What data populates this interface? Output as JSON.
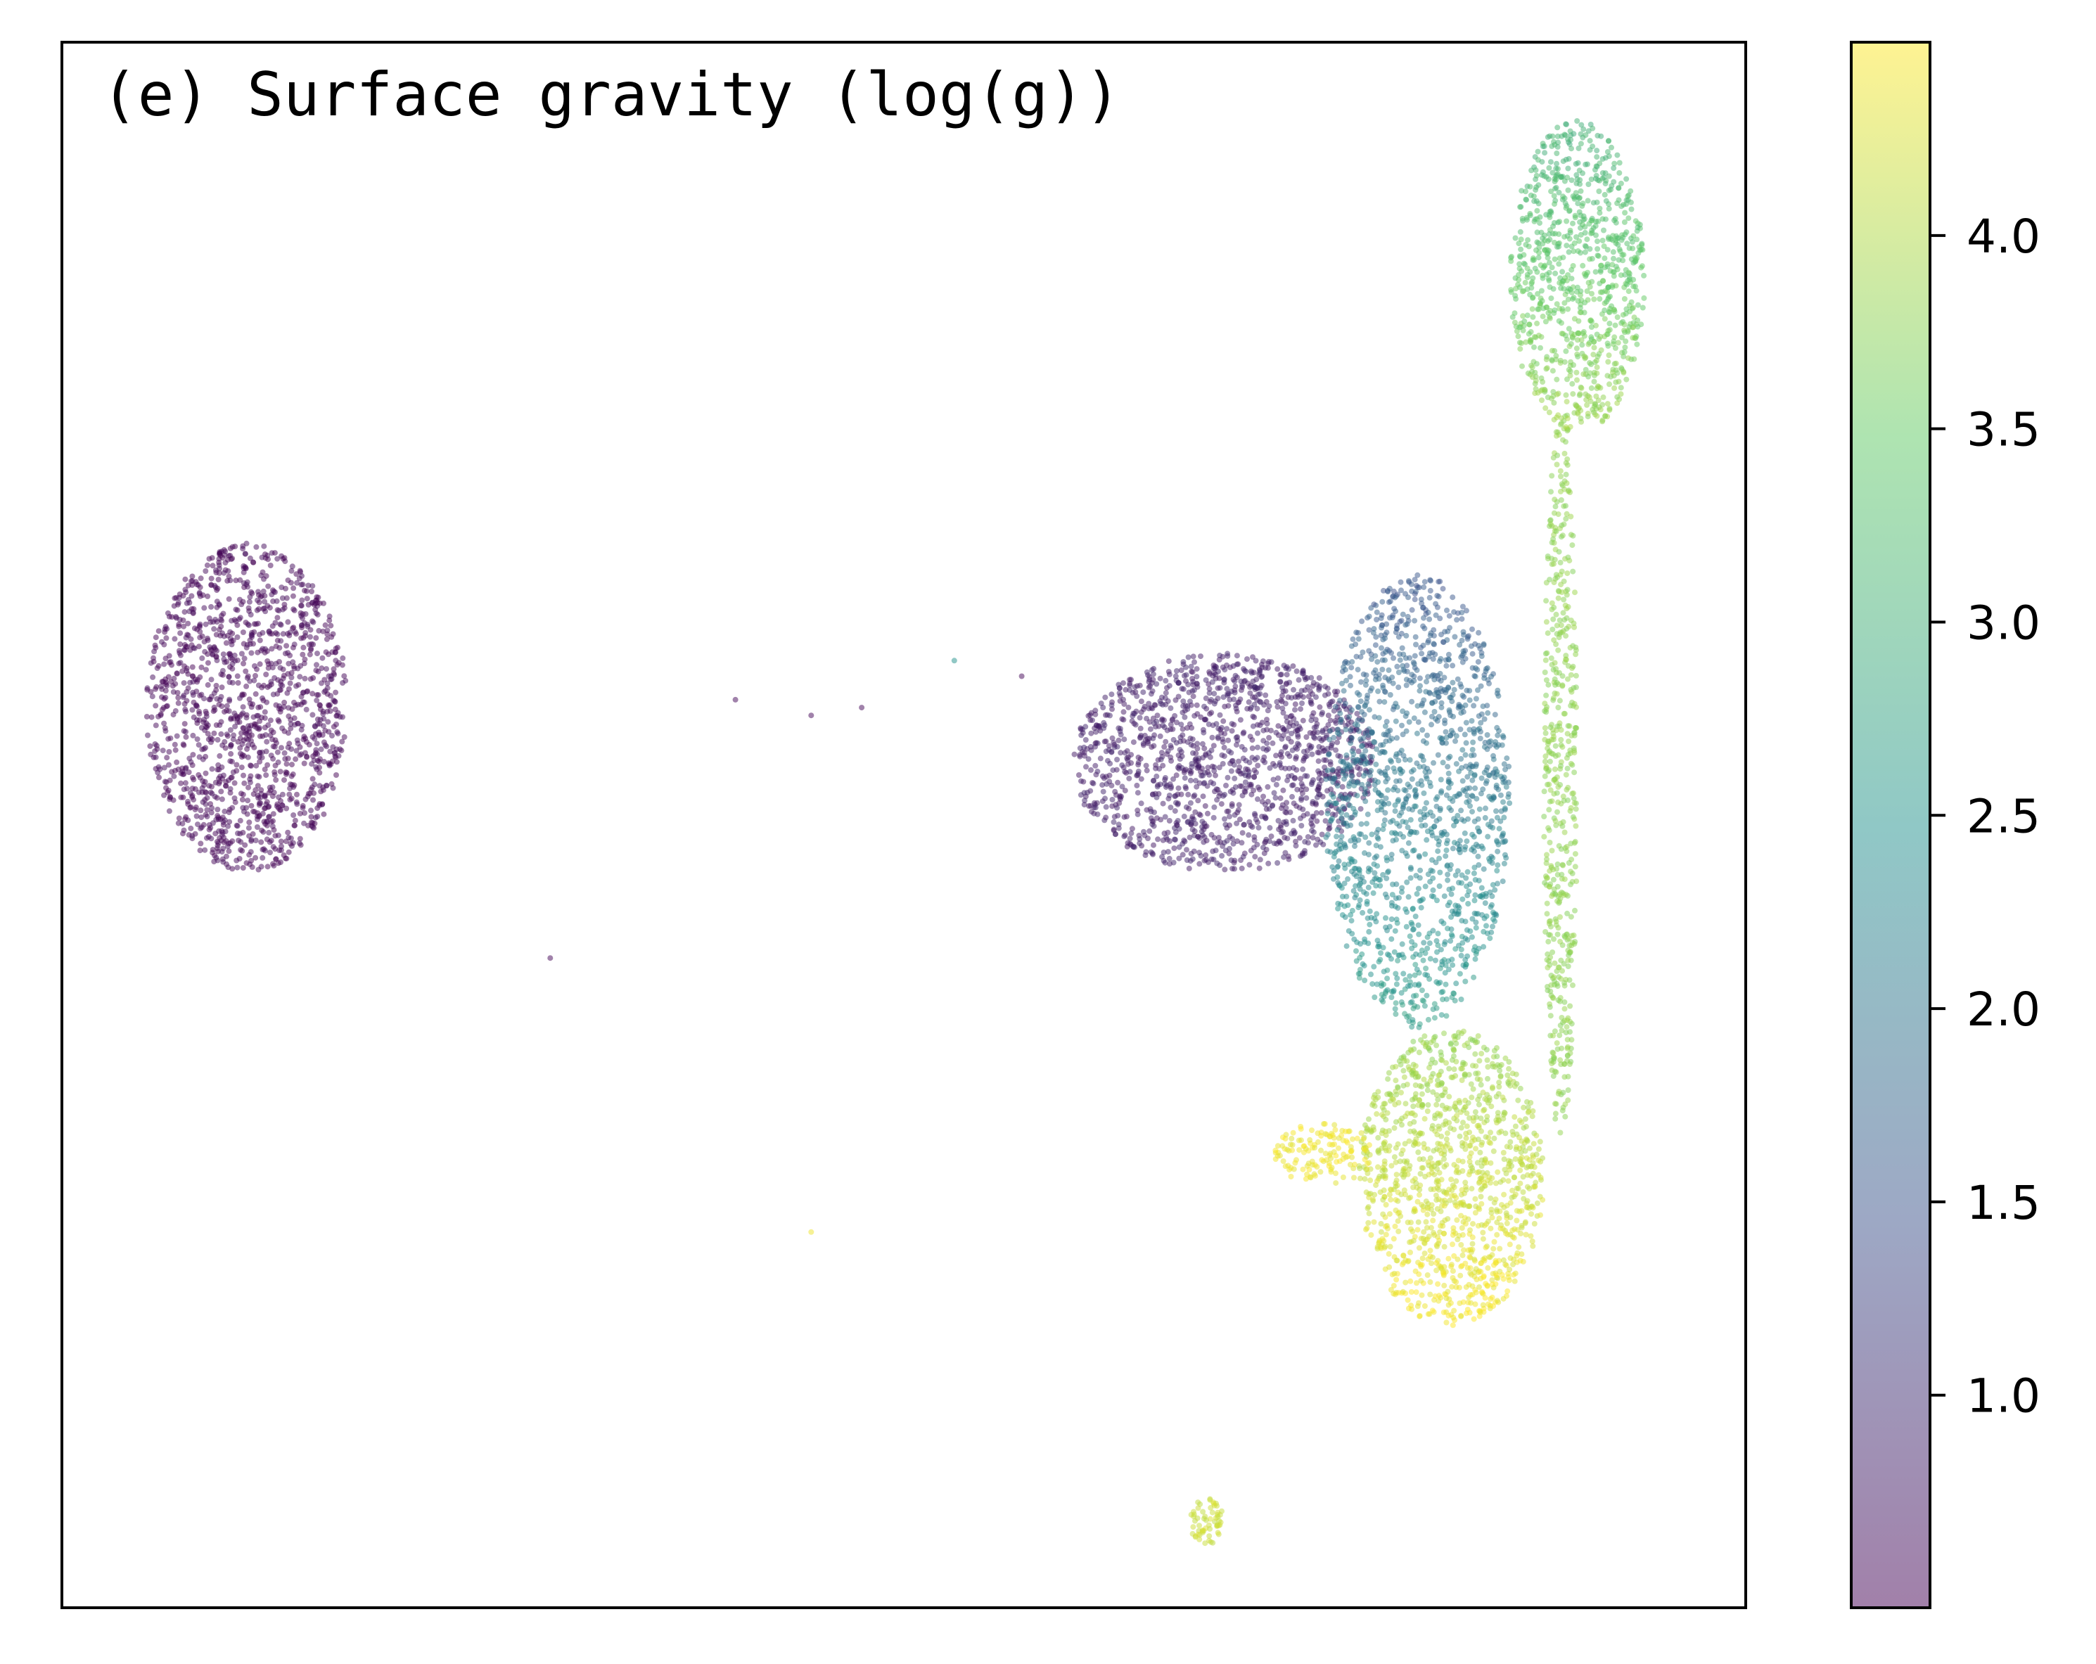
{
  "chart_data": {
    "type": "scatter",
    "title": "(e) Surface gravity (log(g))",
    "xlabel": "",
    "ylabel": "",
    "x_ticks_shown": false,
    "y_ticks_shown": false,
    "grid": false,
    "colormap": "viridis",
    "point_alpha": 0.5,
    "colorbar": {
      "label": "",
      "range": [
        0.45,
        4.5
      ],
      "ticks": [
        1.0,
        1.5,
        2.0,
        2.5,
        3.0,
        3.5,
        4.0
      ],
      "tick_labels": [
        "1.0",
        "1.5",
        "2.0",
        "2.5",
        "3.0",
        "3.5",
        "4.0"
      ]
    },
    "xlim": [
      0,
      100
    ],
    "ylim": [
      0,
      100
    ],
    "groups": [
      {
        "region": "left cluster",
        "x_range": [
          5,
          17
        ],
        "y_range": [
          47,
          68
        ],
        "logg": 0.5
      },
      {
        "region": "central wedge",
        "x_range": [
          60,
          78
        ],
        "y_range": [
          47,
          61
        ],
        "logg": 0.8
      },
      {
        "region": "main body upper",
        "x_range": [
          75,
          86
        ],
        "y_range": [
          37,
          66
        ],
        "logg_range": [
          1.5,
          2.7
        ]
      },
      {
        "region": "main body lower",
        "x_range": [
          77,
          88
        ],
        "y_range": [
          18,
          37
        ],
        "logg_range": [
          3.8,
          4.5
        ]
      },
      {
        "region": "yellow lobe",
        "x_range": [
          72,
          78
        ],
        "y_range": [
          27,
          31
        ],
        "logg": 4.4
      },
      {
        "region": "top-right cluster",
        "x_range": [
          86,
          94
        ],
        "y_range": [
          75,
          95
        ],
        "logg_range": [
          3.0,
          3.9
        ]
      },
      {
        "region": "connecting strand",
        "x_range": [
          88,
          90
        ],
        "y_range": [
          30,
          76
        ],
        "logg": 3.8
      },
      {
        "region": "bottom speck",
        "x_range": [
          67,
          69
        ],
        "y_range": [
          4,
          7
        ],
        "logg": 4.2
      }
    ],
    "outliers": [
      {
        "x": 40,
        "y": 58,
        "logg": 0.5
      },
      {
        "x": 44.5,
        "y": 57,
        "logg": 0.5
      },
      {
        "x": 47.5,
        "y": 57.5,
        "logg": 0.5
      },
      {
        "x": 53,
        "y": 60.5,
        "logg": 2.5
      },
      {
        "x": 57,
        "y": 59.5,
        "logg": 0.5
      },
      {
        "x": 29,
        "y": 41.5,
        "logg": 0.5
      },
      {
        "x": 44.5,
        "y": 24,
        "logg": 4.4
      }
    ]
  }
}
